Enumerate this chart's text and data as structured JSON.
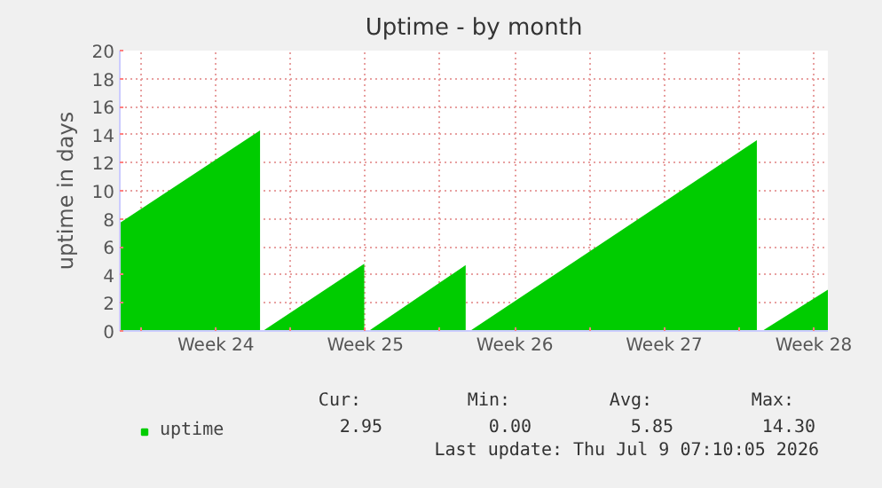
{
  "chart_data": {
    "type": "area",
    "title": "Uptime - by month",
    "ylabel": "uptime in days",
    "xlim": [
      "2026-06-07T00:00",
      "2026-07-10T04:00"
    ],
    "ylim": [
      0,
      20
    ],
    "xticks": [
      {
        "value": "2026-06-08",
        "label": null
      },
      {
        "value": "2026-06-11T12:00",
        "label": "Week 24"
      },
      {
        "value": "2026-06-15",
        "label": null
      },
      {
        "value": "2026-06-18T12:00",
        "label": "Week 25"
      },
      {
        "value": "2026-06-22",
        "label": null
      },
      {
        "value": "2026-06-25T12:00",
        "label": "Week 26"
      },
      {
        "value": "2026-06-29",
        "label": null
      },
      {
        "value": "2026-07-02T12:00",
        "label": "Week 27"
      },
      {
        "value": "2026-07-06",
        "label": null
      },
      {
        "value": "2026-07-09T12:00",
        "label": "Week 28"
      }
    ],
    "yticks": [
      0,
      2,
      4,
      6,
      8,
      10,
      12,
      14,
      16,
      18,
      20
    ],
    "series": [
      {
        "name": "uptime",
        "color": "#00cc00",
        "x": [
          "2026-06-07T00:00",
          "2026-06-13T13:40",
          "2026-06-13T13:40",
          "2026-06-13T16:50",
          "2026-06-18T10:50",
          "2026-06-18T10:50",
          "2026-06-18T15:50",
          "2026-06-23T04:50",
          "2026-06-23T04:50",
          "2026-06-23T09:40",
          "2026-07-06T20:10",
          "2026-07-06T20:10",
          "2026-07-07T02:10",
          "2026-07-10T04:00"
        ],
        "values": [
          7.7,
          14.3,
          0,
          0,
          4.8,
          0,
          0,
          4.7,
          0,
          0,
          13.6,
          0,
          0,
          2.95
        ]
      }
    ],
    "grid": true,
    "legend": "bottom left",
    "annotations": [
      "Cur:",
      "Min:",
      "Avg:",
      "Max:",
      "2.95",
      "0.00",
      "5.85",
      "14.30",
      "Last update: Thu Jul  9 07:10:05 2026"
    ]
  }
}
